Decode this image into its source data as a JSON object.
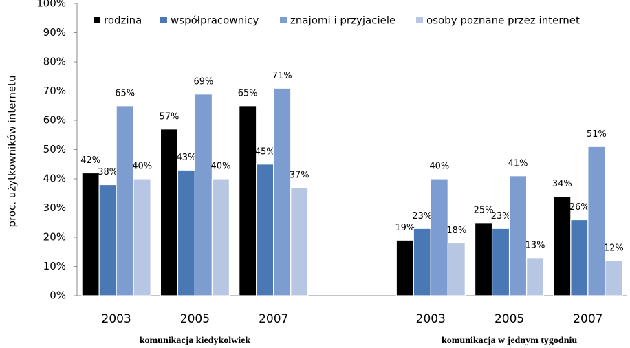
{
  "chart_data": {
    "type": "bar",
    "y_label": "proc. użytkowników internetu",
    "categories": [
      "2003",
      "2005",
      "2007",
      null,
      "2003",
      "2005",
      "2007"
    ],
    "group_labels": [
      "komunikacja kiedykolwiek",
      "komunikacja w jednym tygodniu"
    ],
    "series": [
      {
        "name": "rodzina",
        "color": "#000000",
        "values": [
          42,
          57,
          65,
          null,
          19,
          25,
          34
        ],
        "value_labels": [
          "42%",
          "57%",
          "65%",
          null,
          "19%",
          "25%",
          "34%"
        ]
      },
      {
        "name": "współpracownicy",
        "color": "#4a78b4",
        "values": [
          38,
          43,
          45,
          null,
          23,
          23,
          26
        ],
        "value_labels": [
          "38%",
          "43%",
          "45%",
          null,
          "23%",
          "23%",
          "26%"
        ]
      },
      {
        "name": "znajomi i przyjaciele",
        "color": "#7d9ccf",
        "values": [
          65,
          69,
          71,
          null,
          40,
          41,
          51
        ],
        "value_labels": [
          "65%",
          "69%",
          "71%",
          null,
          "40%",
          "41%",
          "51%"
        ]
      },
      {
        "name": "osoby poznane przez internet",
        "color": "#b7c6e2",
        "values": [
          40,
          40,
          37,
          null,
          18,
          13,
          12
        ],
        "value_labels": [
          "40%",
          "40%",
          "37%",
          null,
          "18%",
          "13%",
          "12%"
        ]
      }
    ],
    "ylim": [
      0,
      100
    ],
    "yticks": [
      {
        "value": 0,
        "label": "0%"
      },
      {
        "value": 10,
        "label": "10%"
      },
      {
        "value": 20,
        "label": "20%"
      },
      {
        "value": 30,
        "label": "30%"
      },
      {
        "value": 40,
        "label": "40%"
      },
      {
        "value": 50,
        "label": "50%"
      },
      {
        "value": 60,
        "label": "60%"
      },
      {
        "value": 70,
        "label": "70%"
      },
      {
        "value": 80,
        "label": "80%"
      },
      {
        "value": 90,
        "label": "90%"
      },
      {
        "value": 100,
        "label": "100%"
      }
    ],
    "grid": false,
    "legend": "top"
  }
}
